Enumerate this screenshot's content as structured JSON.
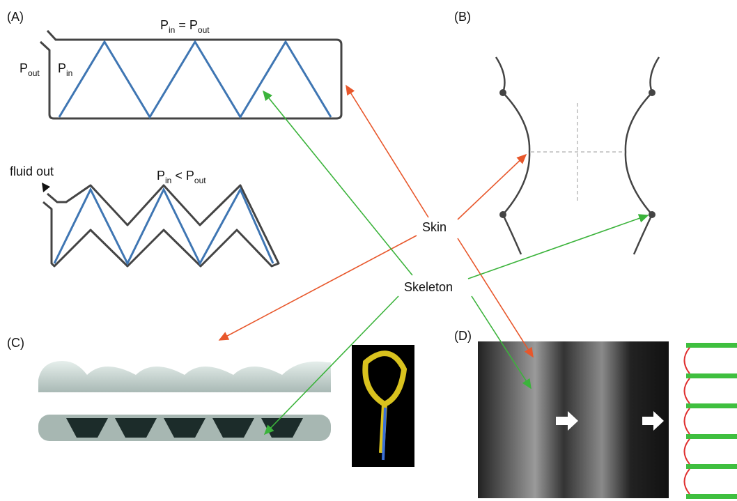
{
  "panels": {
    "a": "(A)",
    "b": "(B)",
    "c": "(C)",
    "d": "(D)"
  },
  "panel_a": {
    "top_equation": {
      "left": {
        "base": "P",
        "sub": "in"
      },
      "op": "=",
      "right": {
        "base": "P",
        "sub": "out"
      }
    },
    "p_out": {
      "base": "P",
      "sub": "out"
    },
    "p_in": {
      "base": "P",
      "sub": "in"
    },
    "fluid_out": "fluid out",
    "bottom_equation": {
      "left": {
        "base": "P",
        "sub": "in"
      },
      "op": "<",
      "right": {
        "base": "P",
        "sub": "out"
      }
    }
  },
  "center": {
    "skin": "Skin",
    "skeleton": "Skeleton"
  }
}
